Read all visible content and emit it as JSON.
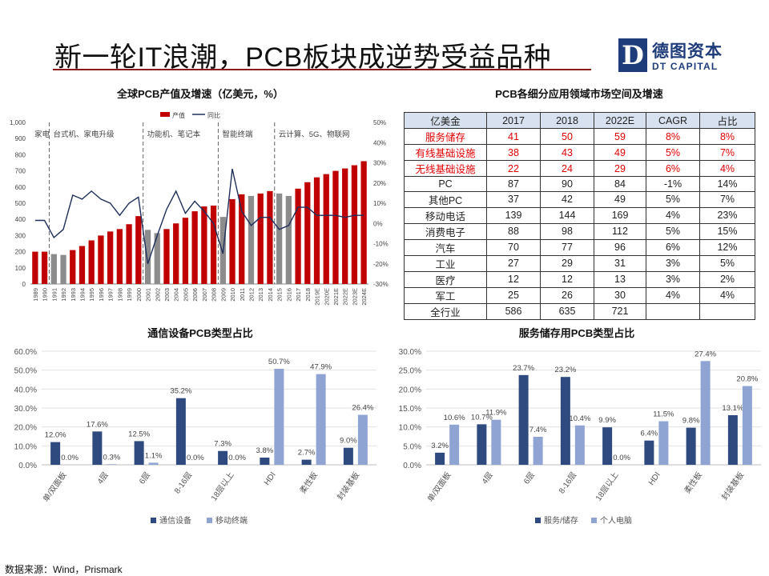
{
  "page": {
    "title": "新一轮IT浪潮，PCB板块成逆势受益品种",
    "source": "数据来源：Wind，Prismark"
  },
  "logo": {
    "mark": "D",
    "name_cn": "德图资本",
    "name_en": "DT CAPITAL",
    "color": "#1f3c7a"
  },
  "colors": {
    "title_rule": "#8b1a1a",
    "bar_red": "#c00000",
    "bar_gray": "#8c8c8c",
    "line_navy": "#1f2f5a",
    "series_dark": "#2e4a7e",
    "series_light": "#8fa4d2",
    "table_header": "#d8e1ef",
    "table_red": "#e00000"
  },
  "chart_data": [
    {
      "id": "global_pcb",
      "type": "bar",
      "title": "全球PCB产值及增速（亿美元，%）",
      "legend": [
        "产值",
        "同比"
      ],
      "legend_position": "top-right",
      "grid": false,
      "categories": [
        "1989",
        "1990",
        "1991",
        "1992",
        "1993",
        "1994",
        "1995",
        "1996",
        "1997",
        "1998",
        "1999",
        "2000",
        "2001",
        "2002",
        "2003",
        "2004",
        "2005",
        "2006",
        "2007",
        "2008",
        "2009",
        "2010",
        "2011",
        "2012",
        "2013",
        "2014",
        "2015",
        "2016",
        "2017",
        "2018",
        "2019E",
        "2020E",
        "2021E",
        "2022E",
        "2023E",
        "2024E"
      ],
      "series": [
        {
          "name": "产值",
          "axis": "left",
          "type": "bar",
          "values": [
            200,
            200,
            185,
            180,
            210,
            235,
            270,
            300,
            325,
            340,
            370,
            420,
            335,
            315,
            340,
            375,
            410,
            450,
            480,
            485,
            415,
            525,
            555,
            545,
            560,
            575,
            560,
            545,
            590,
            630,
            660,
            680,
            700,
            715,
            735,
            760
          ]
        },
        {
          "name": "同比",
          "axis": "right",
          "type": "line",
          "values": [
            1.5,
            1.5,
            -7,
            -3,
            14,
            12,
            16,
            12,
            10,
            4,
            10,
            13,
            -20,
            -6,
            7,
            16,
            5,
            11,
            6,
            0,
            -15,
            27,
            6,
            -1,
            3,
            3,
            -3,
            -1,
            8,
            8,
            4,
            4,
            4,
            3,
            4,
            4
          ]
        }
      ],
      "bar_colors": [
        "red",
        "red",
        "gray",
        "gray",
        "red",
        "red",
        "red",
        "red",
        "red",
        "red",
        "red",
        "red",
        "gray",
        "gray",
        "red",
        "red",
        "red",
        "red",
        "red",
        "red",
        "gray",
        "red",
        "red",
        "gray",
        "red",
        "red",
        "gray",
        "gray",
        "red",
        "red",
        "red",
        "red",
        "red",
        "red",
        "red",
        "red"
      ],
      "y_left": {
        "min": 0,
        "max": 1000,
        "ticks": [
          "0",
          "100",
          "200",
          "300",
          "400",
          "500",
          "600",
          "700",
          "800",
          "900",
          "1,000"
        ]
      },
      "y_right": {
        "min": -30,
        "max": 50,
        "ticks": [
          "-30%",
          "-20%",
          "-10%",
          "0%",
          "10%",
          "20%",
          "30%",
          "40%",
          "50%"
        ]
      },
      "phases": [
        {
          "label": "家电",
          "start": "1989",
          "end": "1990"
        },
        {
          "label": "台式机、家电升级",
          "start": "1991",
          "end": "2000"
        },
        {
          "label": "功能机、笔记本",
          "start": "2001",
          "end": "2008"
        },
        {
          "label": "智能终端",
          "start": "2009",
          "end": "2014"
        },
        {
          "label": "云计算、5G、物联网",
          "start": "2015",
          "end": "2024E"
        }
      ]
    },
    {
      "id": "market_table",
      "type": "table",
      "title": "PCB各细分应用领域市场空间及增速",
      "columns": [
        "亿美金",
        "2017",
        "2018",
        "2022E",
        "CAGR",
        "占比"
      ],
      "rows": [
        {
          "cells": [
            "服务储存",
            "41",
            "50",
            "59",
            "8%",
            "8%"
          ],
          "highlight": true
        },
        {
          "cells": [
            "有线基础设施",
            "38",
            "43",
            "49",
            "5%",
            "7%"
          ],
          "highlight": true
        },
        {
          "cells": [
            "无线基础设施",
            "22",
            "24",
            "29",
            "6%",
            "4%"
          ],
          "highlight": true
        },
        {
          "cells": [
            "PC",
            "87",
            "90",
            "84",
            "-1%",
            "14%"
          ],
          "highlight": false
        },
        {
          "cells": [
            "其他PC",
            "37",
            "42",
            "49",
            "5%",
            "7%"
          ],
          "highlight": false
        },
        {
          "cells": [
            "移动电话",
            "139",
            "144",
            "169",
            "4%",
            "23%"
          ],
          "highlight": false
        },
        {
          "cells": [
            "消费电子",
            "88",
            "98",
            "112",
            "5%",
            "15%"
          ],
          "highlight": false
        },
        {
          "cells": [
            "汽车",
            "70",
            "77",
            "96",
            "6%",
            "12%"
          ],
          "highlight": false
        },
        {
          "cells": [
            "工业",
            "27",
            "29",
            "31",
            "3%",
            "5%"
          ],
          "highlight": false
        },
        {
          "cells": [
            "医疗",
            "12",
            "12",
            "13",
            "3%",
            "2%"
          ],
          "highlight": false
        },
        {
          "cells": [
            "军工",
            "25",
            "26",
            "30",
            "4%",
            "4%"
          ],
          "highlight": false
        },
        {
          "cells": [
            "全行业",
            "586",
            "635",
            "721",
            "",
            ""
          ],
          "highlight": false
        }
      ]
    },
    {
      "id": "comm_pcb",
      "type": "bar",
      "title": "通信设备PCB类型占比",
      "categories": [
        "单/双面板",
        "4层",
        "6层",
        "8-16层",
        "18层以上",
        "HDI",
        "柔性板",
        "封装基板"
      ],
      "series": [
        {
          "name": "通信设备",
          "values": [
            12.0,
            17.6,
            12.5,
            35.2,
            7.3,
            3.8,
            2.7,
            9.0
          ],
          "labels": [
            "12.0%",
            "17.6%",
            "12.5%",
            "35.2%",
            "7.3%",
            "3.8%",
            "2.7%",
            "9.0%"
          ]
        },
        {
          "name": "移动终端",
          "values": [
            0.0,
            0.3,
            1.1,
            0.0,
            0.0,
            50.7,
            47.9,
            26.4
          ],
          "labels": [
            "0.0%",
            "0.3%",
            "1.1%",
            "0.0%",
            "0.0%",
            "50.7%",
            "47.9%",
            "26.4%"
          ]
        }
      ],
      "ylim": [
        0,
        60
      ],
      "ticks": [
        "0.0%",
        "10.0%",
        "20.0%",
        "30.0%",
        "40.0%",
        "50.0%",
        "60.0%"
      ],
      "legend_position": "bottom"
    },
    {
      "id": "server_pcb",
      "type": "bar",
      "title": "服务储存用PCB类型占比",
      "categories": [
        "单/双面板",
        "4层",
        "6层",
        "8-16层",
        "18层以上",
        "HDI",
        "柔性板",
        "封装基板"
      ],
      "series": [
        {
          "name": "服务/储存",
          "values": [
            3.2,
            10.7,
            23.7,
            23.2,
            9.9,
            6.4,
            9.8,
            13.1
          ],
          "labels": [
            "3.2%",
            "10.7%",
            "23.7%",
            "23.2%",
            "9.9%",
            "6.4%",
            "9.8%",
            "13.1%"
          ]
        },
        {
          "name": "个人电脑",
          "values": [
            10.6,
            11.9,
            7.4,
            10.4,
            0.0,
            11.5,
            27.4,
            20.8
          ],
          "labels": [
            "10.6%",
            "11.9%",
            "7.4%",
            "10.4%",
            "0.0%",
            "11.5%",
            "27.4%",
            "20.8%"
          ]
        }
      ],
      "ylim": [
        0,
        30
      ],
      "ticks": [
        "0.0%",
        "5.0%",
        "10.0%",
        "15.0%",
        "20.0%",
        "25.0%",
        "30.0%"
      ],
      "legend_position": "bottom"
    }
  ]
}
